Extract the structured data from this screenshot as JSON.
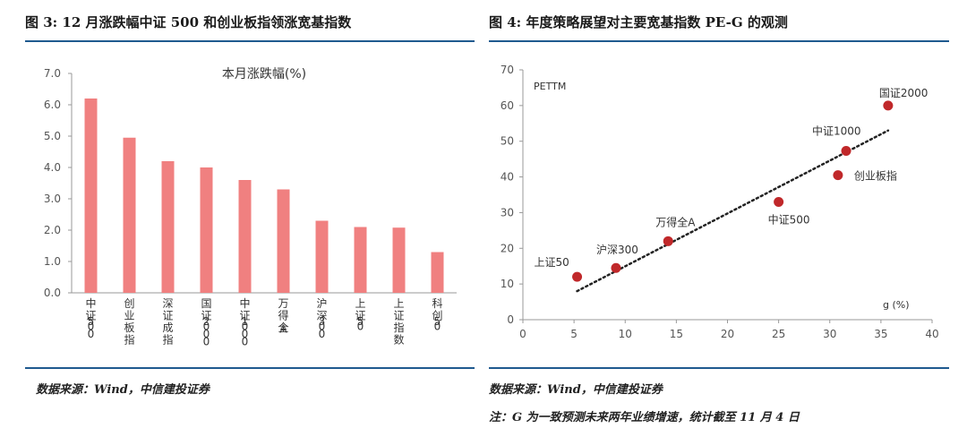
{
  "left": {
    "figure_title": "图 3: 12 月涨跌幅中证 500 和创业板指领涨宽基指数",
    "source": "数据来源：Wind，中信建投证券"
  },
  "right": {
    "figure_title": "图 4: 年度策略展望对主要宽基指数 PE-G 的观测",
    "source": "数据来源：Wind，中信建投证券",
    "note": "注：G 为一致预测未来两年业绩增速，统计截至 11 月 4 日"
  },
  "chart_data": [
    {
      "type": "bar",
      "title": "本月涨跌幅(%)",
      "categories": [
        "中证500",
        "创业板指",
        "深证成指",
        "国证2000",
        "中证1000",
        "万得全A",
        "沪深300",
        "上证50",
        "上证指数",
        "科创50"
      ],
      "values": [
        6.2,
        4.95,
        4.2,
        4.0,
        3.6,
        3.3,
        2.3,
        2.1,
        2.08,
        1.3
      ],
      "ylim": [
        0,
        7
      ],
      "yticks": [
        "0.0",
        "1.0",
        "2.0",
        "3.0",
        "4.0",
        "5.0",
        "6.0",
        "7.0"
      ],
      "color": "#f08080",
      "grid": false
    },
    {
      "type": "scatter",
      "ylabel": "PETTM",
      "xlabel": "g (%)",
      "xlim": [
        0,
        40
      ],
      "ylim": [
        0,
        70
      ],
      "xticks": [
        "0",
        "5",
        "10",
        "15",
        "20",
        "25",
        "30",
        "35",
        "40"
      ],
      "yticks": [
        "0",
        "10",
        "20",
        "30",
        "40",
        "50",
        "60",
        "70"
      ],
      "points": [
        {
          "label": "上证50",
          "x": 5.3,
          "y": 12
        },
        {
          "label": "沪深300",
          "x": 9.1,
          "y": 14.5
        },
        {
          "label": "万得全A",
          "x": 14.2,
          "y": 22
        },
        {
          "label": "中证500",
          "x": 25.0,
          "y": 33
        },
        {
          "label": "创业板指",
          "x": 30.8,
          "y": 40.5
        },
        {
          "label": "中证1000",
          "x": 31.6,
          "y": 47.3
        },
        {
          "label": "国证2000",
          "x": 35.7,
          "y": 60
        }
      ],
      "trendline": {
        "style": "dotted",
        "x": [
          5.3,
          35.7
        ],
        "y": [
          8,
          53
        ]
      },
      "color": "#c0282a",
      "grid": false
    }
  ]
}
